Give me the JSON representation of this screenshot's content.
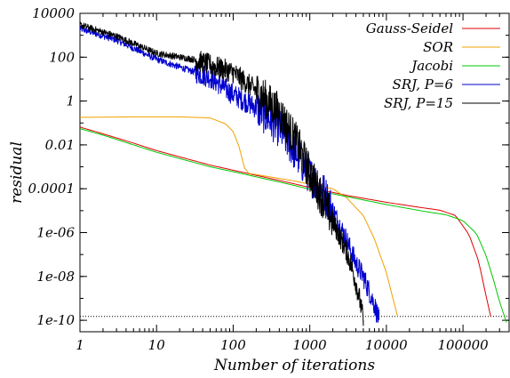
{
  "chart_data": {
    "type": "line",
    "xlabel": "Number of iterations",
    "ylabel": "residual",
    "x_scale": "log",
    "y_scale": "log",
    "xlim": [
      1,
      400000
    ],
    "ylim": [
      3e-11,
      10000
    ],
    "x_ticks": [
      {
        "value": 1,
        "label": "1"
      },
      {
        "value": 10,
        "label": "10"
      },
      {
        "value": 100,
        "label": "100"
      },
      {
        "value": 1000,
        "label": "1000"
      },
      {
        "value": 10000,
        "label": "10000"
      },
      {
        "value": 100000,
        "label": "100000"
      }
    ],
    "y_ticks": [
      {
        "value": 10000,
        "label": "10000"
      },
      {
        "value": 100,
        "label": "100"
      },
      {
        "value": 1,
        "label": "1"
      },
      {
        "value": 0.01,
        "label": "0.01"
      },
      {
        "value": 0.0001,
        "label": "0.0001"
      },
      {
        "value": 1e-06,
        "label": "1e-06"
      },
      {
        "value": 1e-08,
        "label": "1e-08"
      },
      {
        "value": 1e-10,
        "label": "1e-10"
      }
    ],
    "threshold": 1.5e-10,
    "legend_position": "top-right",
    "grid": false,
    "series": [
      {
        "name": "Gauss-Seidel",
        "color": "#e00000",
        "noisy": false,
        "points": [
          [
            1,
            0.065
          ],
          [
            2,
            0.032
          ],
          [
            5,
            0.012
          ],
          [
            10,
            0.0055
          ],
          [
            50,
            0.0012
          ],
          [
            100,
            0.0007
          ],
          [
            500,
            0.0002
          ],
          [
            1000,
            0.000115
          ],
          [
            3000,
            5e-05
          ],
          [
            10000,
            2.4e-05
          ],
          [
            30000,
            1.35e-05
          ],
          [
            50000,
            1.05e-05
          ],
          [
            80000,
            6e-06
          ],
          [
            120000,
            8e-07
          ],
          [
            160000,
            5e-08
          ],
          [
            200000,
            1.3e-09
          ],
          [
            230000,
            1.5e-10
          ]
        ]
      },
      {
        "name": "SOR",
        "color": "#f0a000",
        "noisy": false,
        "points": [
          [
            1,
            0.18
          ],
          [
            5,
            0.19
          ],
          [
            20,
            0.19
          ],
          [
            50,
            0.17
          ],
          [
            80,
            0.09
          ],
          [
            100,
            0.04
          ],
          [
            120,
            0.008
          ],
          [
            140,
            0.0009
          ],
          [
            160,
            0.0005
          ],
          [
            300,
            0.00035
          ],
          [
            700,
            0.00021
          ],
          [
            1000,
            0.00016
          ],
          [
            2000,
            0.0001
          ],
          [
            3000,
            4e-05
          ],
          [
            5000,
            6e-06
          ],
          [
            7000,
            5e-07
          ],
          [
            10000,
            1.5e-08
          ],
          [
            12000,
            1.2e-09
          ],
          [
            14000,
            1.5e-10
          ]
        ]
      },
      {
        "name": "Jacobi",
        "color": "#00c800",
        "noisy": false,
        "points": [
          [
            1,
            0.055
          ],
          [
            2,
            0.028
          ],
          [
            5,
            0.01
          ],
          [
            10,
            0.0046
          ],
          [
            50,
            0.001
          ],
          [
            100,
            0.0006
          ],
          [
            500,
            0.00017
          ],
          [
            1000,
            9.5e-05
          ],
          [
            3000,
            4.4e-05
          ],
          [
            10000,
            1.9e-05
          ],
          [
            30000,
            9.5e-06
          ],
          [
            60000,
            6.5e-06
          ],
          [
            100000,
            3.5e-06
          ],
          [
            150000,
            9e-07
          ],
          [
            200000,
            9e-08
          ],
          [
            250000,
            7e-09
          ],
          [
            300000,
            7e-10
          ],
          [
            370000,
            8e-11
          ]
        ]
      },
      {
        "name": "SRJ, P=6",
        "color": "#0000d0",
        "noisy": true,
        "points": [
          [
            1,
            2000
          ],
          [
            3,
            600
          ],
          [
            10,
            80
          ],
          [
            50,
            12
          ],
          [
            100,
            2
          ],
          [
            200,
            0.5
          ],
          [
            400,
            0.06
          ],
          [
            700,
            0.003
          ],
          [
            1000,
            0.0004
          ],
          [
            1500,
            8e-05
          ],
          [
            2000,
            1e-05
          ],
          [
            3000,
            5e-07
          ],
          [
            4000,
            4e-08
          ],
          [
            5000,
            1e-08
          ],
          [
            6000,
            2e-09
          ],
          [
            7000,
            5e-10
          ],
          [
            8000,
            1e-10
          ]
        ]
      },
      {
        "name": "SRJ, P=15",
        "color": "#000000",
        "noisy": true,
        "points": [
          [
            1,
            3000
          ],
          [
            3,
            900
          ],
          [
            10,
            150
          ],
          [
            30,
            80
          ],
          [
            100,
            20
          ],
          [
            200,
            3
          ],
          [
            400,
            0.3
          ],
          [
            700,
            0.01
          ],
          [
            1000,
            0.0005
          ],
          [
            1500,
            3e-05
          ],
          [
            2000,
            3e-06
          ],
          [
            2500,
            6e-07
          ],
          [
            3000,
            1.5e-07
          ],
          [
            3500,
            3e-08
          ],
          [
            4000,
            5e-09
          ],
          [
            4500,
            8e-10
          ],
          [
            5000,
            1e-10
          ]
        ]
      }
    ]
  }
}
